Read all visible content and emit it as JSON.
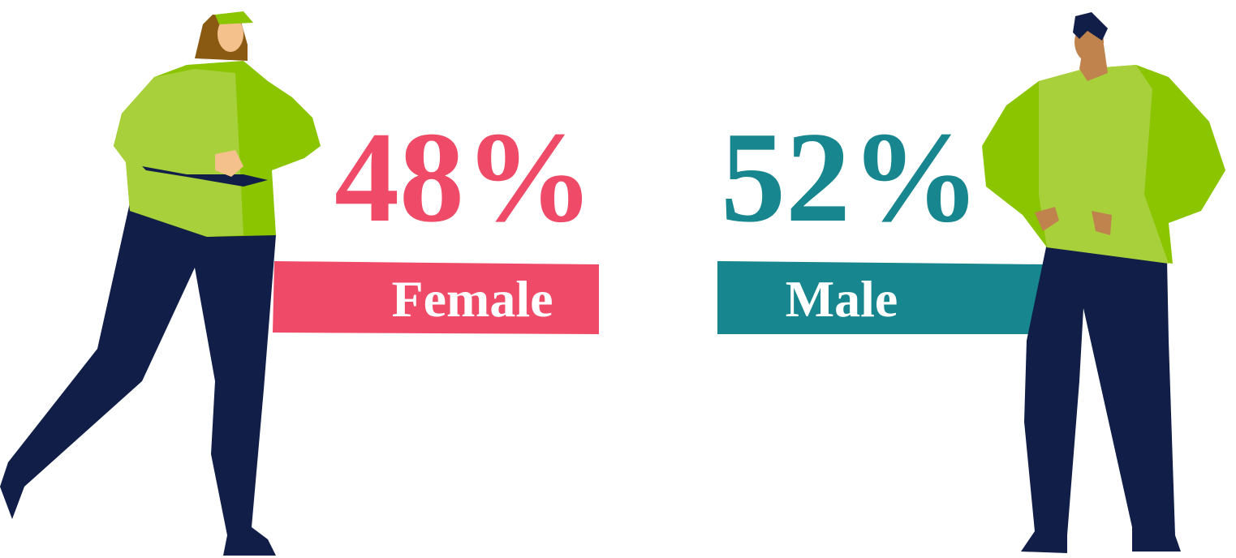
{
  "stats": [
    {
      "percent": "48%",
      "label": "Female"
    },
    {
      "percent": "52%",
      "label": "Male"
    }
  ]
}
